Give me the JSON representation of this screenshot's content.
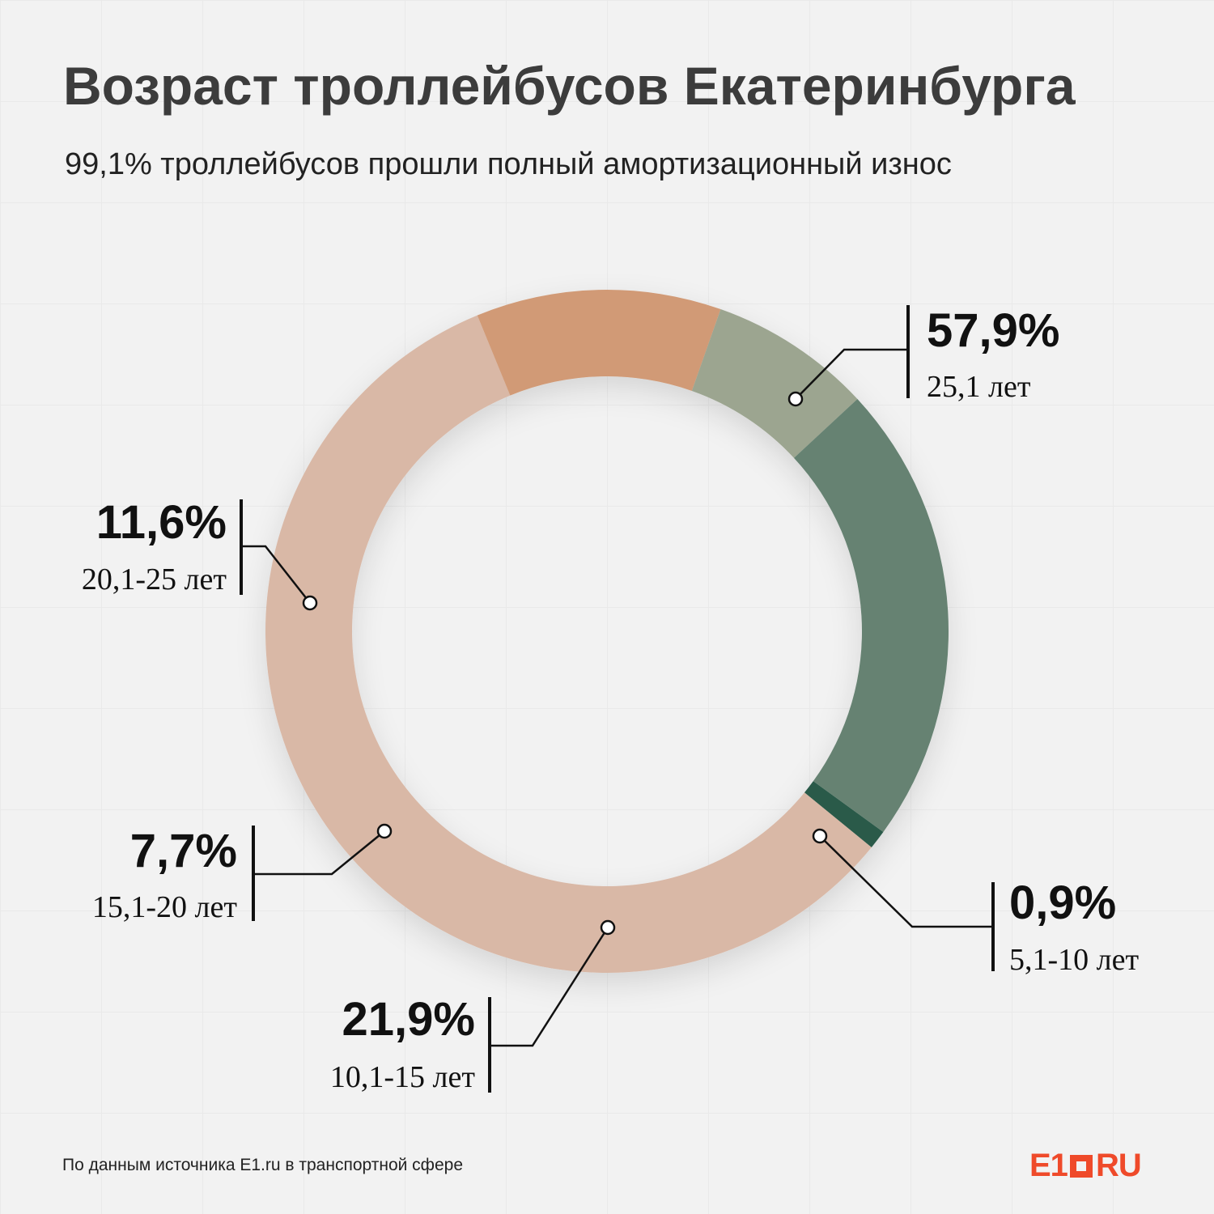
{
  "header": {
    "title": "Возраст троллейбусов Екатеринбурга",
    "subtitle": "99,1% троллейбусов прошли полный амортизационный износ"
  },
  "footer": {
    "source": "По данным источника E1.ru в транспортной сфере",
    "logo_e1": "E1",
    "logo_ru": "RU"
  },
  "colors": {
    "label_text": "#111111",
    "leader_line": "#111111"
  },
  "chart_data": {
    "type": "pie",
    "donut": true,
    "series": [
      {
        "percent_label": "0,9%",
        "range_label": "5,1-10 лет",
        "value": 0.9,
        "color": "#2a5a4a"
      },
      {
        "percent_label": "57,9%",
        "range_label": "25,1 лет",
        "value": 57.9,
        "color": "#d9b8a6"
      },
      {
        "percent_label": "11,6%",
        "range_label": "20,1-25 лет",
        "value": 11.6,
        "color": "#d19a76"
      },
      {
        "percent_label": "7,7%",
        "range_label": "15,1-20 лет",
        "value": 7.7,
        "color": "#9ca590"
      },
      {
        "percent_label": "21,9%",
        "range_label": "10,1-15 лет",
        "value": 21.9,
        "color": "#668272"
      }
    ]
  }
}
